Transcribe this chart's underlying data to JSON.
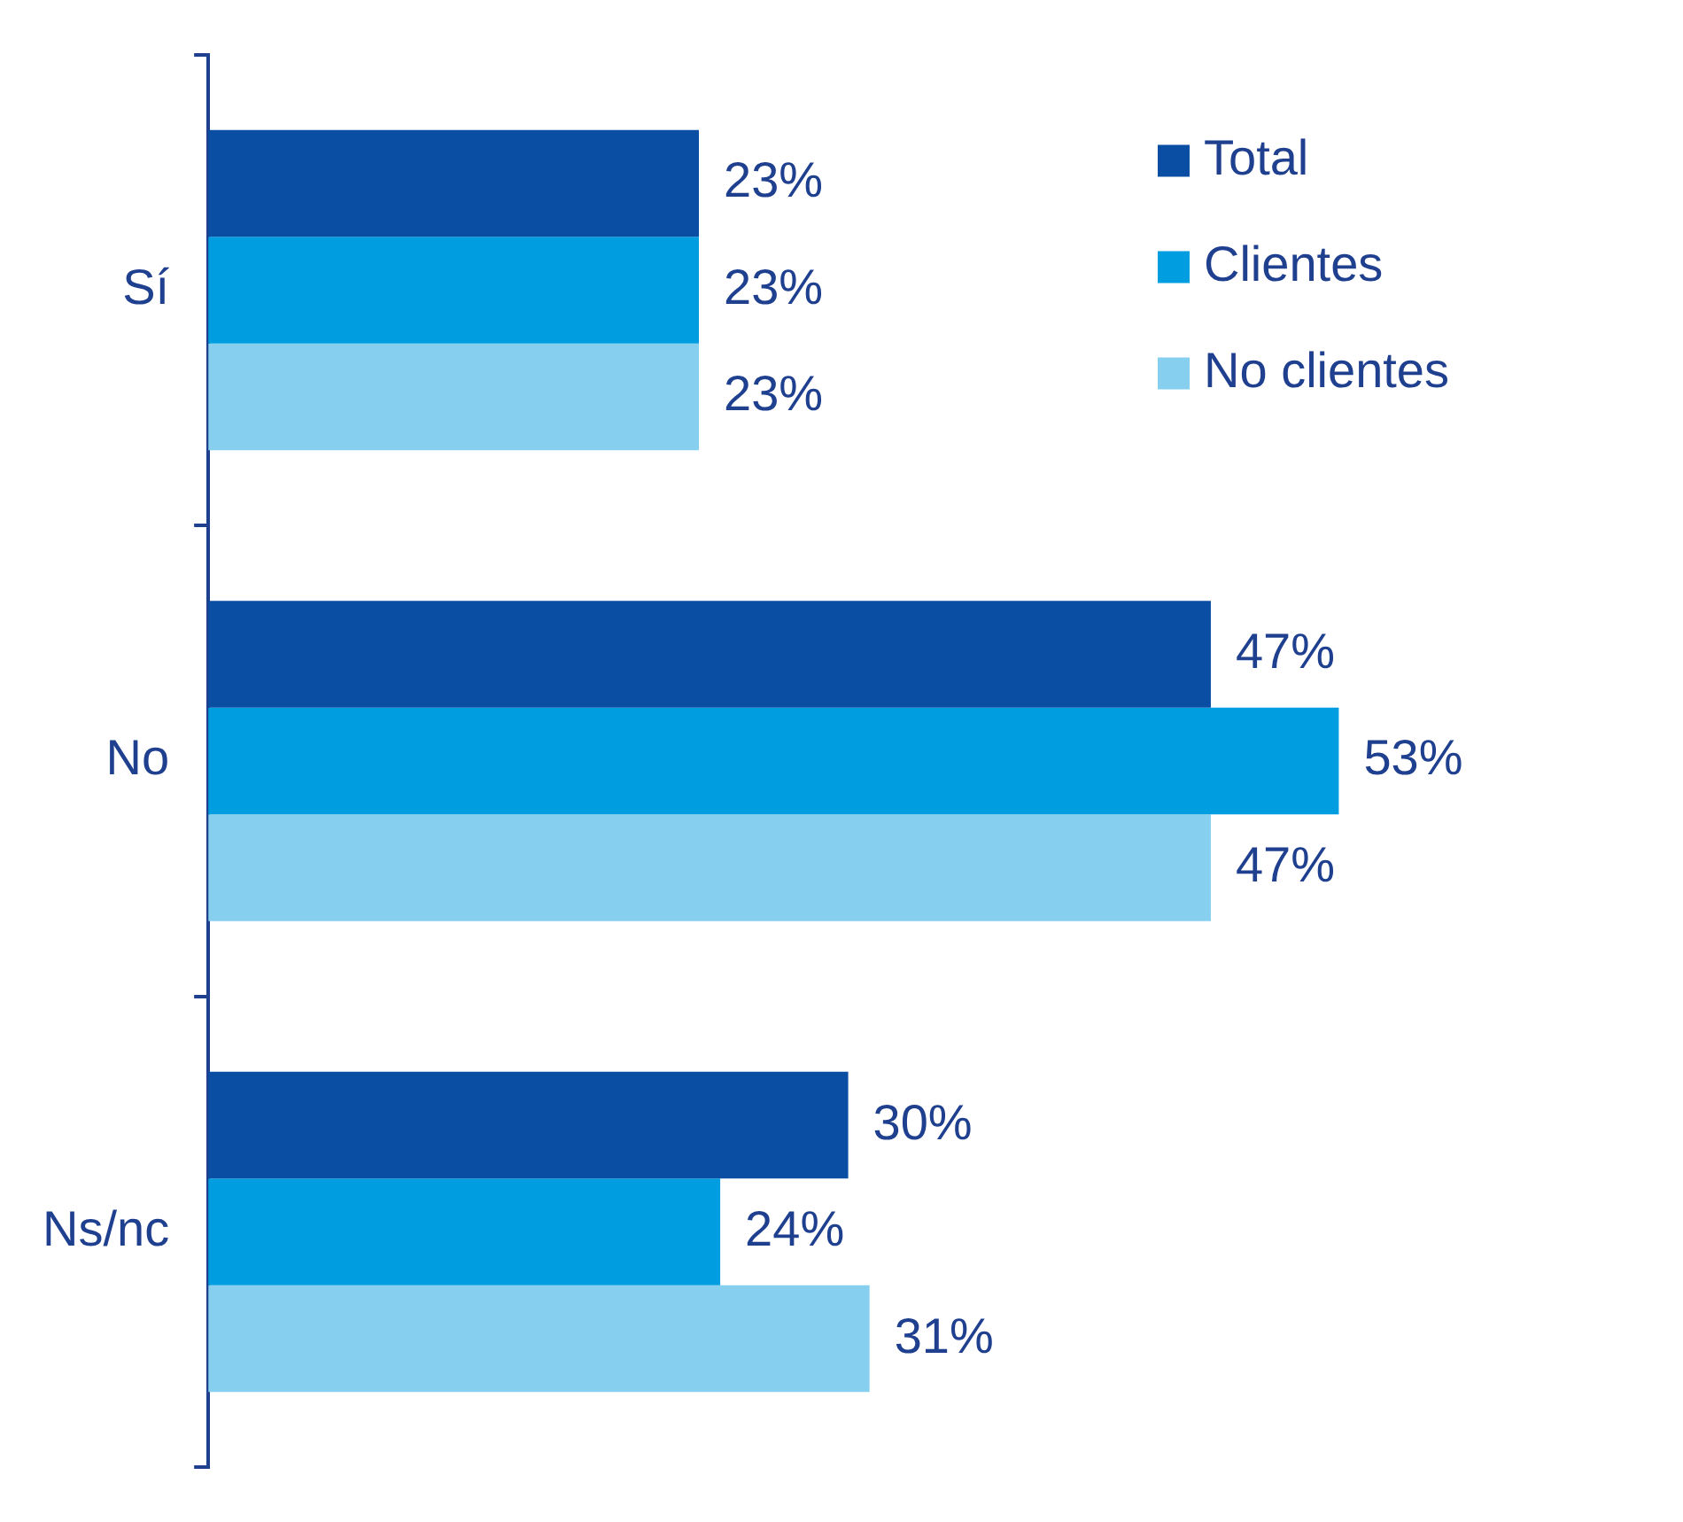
{
  "chart_data": {
    "type": "bar",
    "orientation": "horizontal",
    "categories": [
      "Sí",
      "No",
      "Ns/nc"
    ],
    "series": [
      {
        "name": "Total",
        "color": "#0a4ea3",
        "values": [
          23,
          47,
          30
        ],
        "value_labels": [
          "23%",
          "47%",
          "30%"
        ]
      },
      {
        "name": "Clientes",
        "color": "#009ee0",
        "values": [
          23,
          53,
          24
        ],
        "value_labels": [
          "23%",
          "53%",
          "24%"
        ]
      },
      {
        "name": "No clientes",
        "color": "#87cfee",
        "values": [
          23,
          47,
          31
        ],
        "value_labels": [
          "23%",
          "47%",
          "31%"
        ]
      }
    ],
    "legend": "top right",
    "tick_labels": "y"
  }
}
